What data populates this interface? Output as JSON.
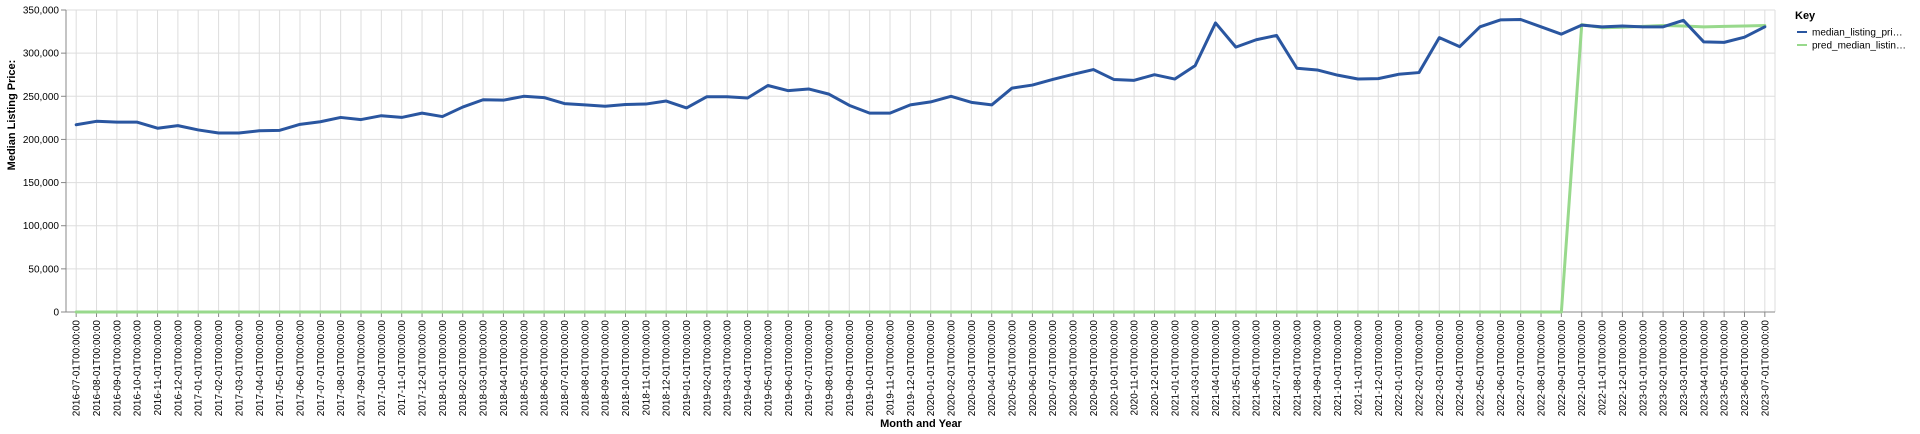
{
  "chart_data": {
    "type": "line",
    "xlabel": "Month and Year",
    "ylabel": "Median Listing Price:",
    "ylim": [
      0,
      350000
    ],
    "yticks": [
      "0",
      "50,000",
      "100,000",
      "150,000",
      "200,000",
      "250,000",
      "300,000",
      "350,000"
    ],
    "grid": true,
    "legend": {
      "title": "Key",
      "position": "top-right"
    },
    "x": [
      "2016-07-01T00:00:00",
      "2016-08-01T00:00:00",
      "2016-09-01T00:00:00",
      "2016-10-01T00:00:00",
      "2016-11-01T00:00:00",
      "2016-12-01T00:00:00",
      "2017-01-01T00:00:00",
      "2017-02-01T00:00:00",
      "2017-03-01T00:00:00",
      "2017-04-01T00:00:00",
      "2017-05-01T00:00:00",
      "2017-06-01T00:00:00",
      "2017-07-01T00:00:00",
      "2017-08-01T00:00:00",
      "2017-09-01T00:00:00",
      "2017-10-01T00:00:00",
      "2017-11-01T00:00:00",
      "2017-12-01T00:00:00",
      "2018-01-01T00:00:00",
      "2018-02-01T00:00:00",
      "2018-03-01T00:00:00",
      "2018-04-01T00:00:00",
      "2018-05-01T00:00:00",
      "2018-06-01T00:00:00",
      "2018-07-01T00:00:00",
      "2018-08-01T00:00:00",
      "2018-09-01T00:00:00",
      "2018-10-01T00:00:00",
      "2018-11-01T00:00:00",
      "2018-12-01T00:00:00",
      "2019-01-01T00:00:00",
      "2019-02-01T00:00:00",
      "2019-03-01T00:00:00",
      "2019-04-01T00:00:00",
      "2019-05-01T00:00:00",
      "2019-06-01T00:00:00",
      "2019-07-01T00:00:00",
      "2019-08-01T00:00:00",
      "2019-09-01T00:00:00",
      "2019-10-01T00:00:00",
      "2019-11-01T00:00:00",
      "2019-12-01T00:00:00",
      "2020-01-01T00:00:00",
      "2020-02-01T00:00:00",
      "2020-03-01T00:00:00",
      "2020-04-01T00:00:00",
      "2020-05-01T00:00:00",
      "2020-06-01T00:00:00",
      "2020-07-01T00:00:00",
      "2020-08-01T00:00:00",
      "2020-09-01T00:00:00",
      "2020-10-01T00:00:00",
      "2020-11-01T00:00:00",
      "2020-12-01T00:00:00",
      "2021-01-01T00:00:00",
      "2021-03-01T00:00:00",
      "2021-04-01T00:00:00",
      "2021-05-01T00:00:00",
      "2021-06-01T00:00:00",
      "2021-07-01T00:00:00",
      "2021-08-01T00:00:00",
      "2021-09-01T00:00:00",
      "2021-10-01T00:00:00",
      "2021-11-01T00:00:00",
      "2021-12-01T00:00:00",
      "2022-01-01T00:00:00",
      "2022-02-01T00:00:00",
      "2022-03-01T00:00:00",
      "2022-04-01T00:00:00",
      "2022-05-01T00:00:00",
      "2022-06-01T00:00:00",
      "2022-07-01T00:00:00",
      "2022-08-01T00:00:00",
      "2022-09-01T00:00:00",
      "2022-10-01T00:00:00",
      "2022-11-01T00:00:00",
      "2022-12-01T00:00:00",
      "2023-01-01T00:00:00",
      "2023-02-01T00:00:00",
      "2023-03-01T00:00:00",
      "2023-04-01T00:00:00",
      "2023-05-01T00:00:00",
      "2023-06-01T00:00:00",
      "2023-07-01T00:00:00"
    ],
    "series": [
      {
        "name": "median_listing_pri…",
        "color": "#2a56a0",
        "values": [
          217000,
          221000,
          220000,
          220000,
          213000,
          216000,
          211000,
          207500,
          207500,
          210000,
          210500,
          217500,
          220500,
          225500,
          223000,
          227500,
          225500,
          230500,
          226500,
          237500,
          246000,
          245500,
          250000,
          248500,
          241500,
          240000,
          238500,
          240500,
          241000,
          244500,
          236500,
          249500,
          249500,
          248000,
          262500,
          256500,
          258500,
          252500,
          239500,
          230500,
          230500,
          240000,
          243500,
          250000,
          243000,
          240000,
          259500,
          263000,
          269500,
          275500,
          281000,
          269500,
          268500,
          275000,
          270000,
          285500,
          335000,
          307000,
          315500,
          320500,
          282500,
          280500,
          274500,
          270000,
          270500,
          275500,
          277500,
          318000,
          307500,
          330500,
          338500,
          339000,
          330500,
          322000,
          332500,
          330500,
          331500,
          330500,
          330500,
          338000,
          313000,
          312500,
          318500,
          330500
        ]
      },
      {
        "name": "pred_median_listin…",
        "color": "#98d98c",
        "values": [
          0,
          0,
          0,
          0,
          0,
          0,
          0,
          0,
          0,
          0,
          0,
          0,
          0,
          0,
          0,
          0,
          0,
          0,
          0,
          0,
          0,
          0,
          0,
          0,
          0,
          0,
          0,
          0,
          0,
          0,
          0,
          0,
          0,
          0,
          0,
          0,
          0,
          0,
          0,
          0,
          0,
          0,
          0,
          0,
          0,
          0,
          0,
          0,
          0,
          0,
          0,
          0,
          0,
          0,
          0,
          0,
          0,
          0,
          0,
          0,
          0,
          0,
          0,
          0,
          0,
          0,
          0,
          0,
          0,
          0,
          0,
          0,
          0,
          0,
          333000,
          329500,
          330000,
          331000,
          332000,
          331500,
          330500,
          331000,
          331500,
          332000
        ]
      }
    ]
  }
}
